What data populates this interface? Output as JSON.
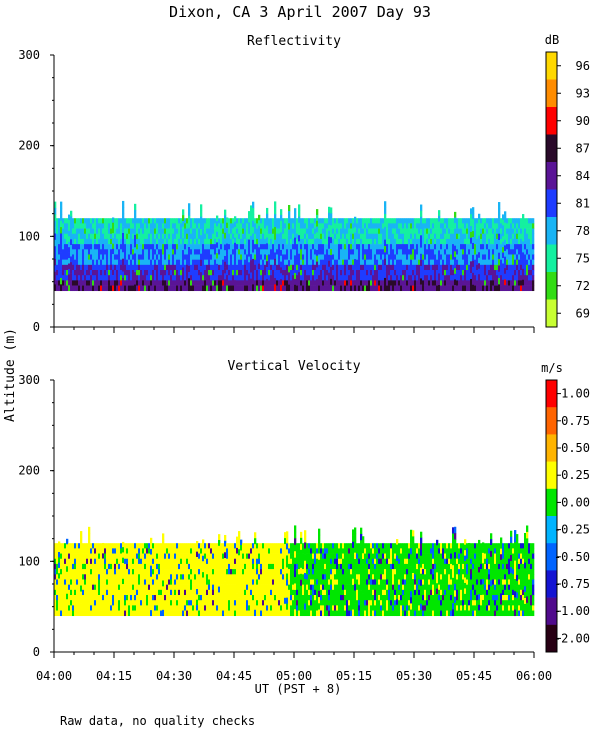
{
  "title": "Dixon, CA   3 April 2007   Day   93",
  "footnote": "Raw data, no quality checks",
  "y_axis_label": "Altitude (m)",
  "x_axis_label": "UT  (PST + 8)",
  "chart_data": [
    {
      "type": "heatmap",
      "title": "Reflectivity",
      "ylim": [
        0,
        300
      ],
      "yticks": [
        0,
        100,
        200,
        300
      ],
      "xlim": [
        "04:00",
        "06:00"
      ],
      "xticks": [
        "04:00",
        "04:15",
        "04:30",
        "04:45",
        "05:00",
        "05:15",
        "05:30",
        "05:45",
        "06:00"
      ],
      "xlabel": "UT  (PST + 8)",
      "ylabel": "Altitude (m)",
      "data_altitude_range": [
        40,
        120
      ],
      "colorbar": {
        "unit": "dB",
        "labels": [
          "96",
          "93",
          "90",
          "87",
          "84",
          "81",
          "78",
          "75",
          "72",
          "69"
        ],
        "colors": [
          "#ffd800",
          "#ff8c00",
          "#ff0000",
          "#2a0a2a",
          "#5a1496",
          "#1e3cff",
          "#19b4f5",
          "#14f0a0",
          "#32dc14",
          "#c8ff32"
        ]
      }
    },
    {
      "type": "heatmap",
      "title": "Vertical Velocity",
      "ylim": [
        0,
        300
      ],
      "yticks": [
        0,
        100,
        200,
        300
      ],
      "xlim": [
        "04:00",
        "06:00"
      ],
      "xticks": [
        "04:00",
        "04:15",
        "04:30",
        "04:45",
        "05:00",
        "05:15",
        "05:30",
        "05:45",
        "06:00"
      ],
      "xlabel": "UT  (PST + 8)",
      "ylabel": "Altitude (m)",
      "data_altitude_range": [
        40,
        120
      ],
      "colorbar": {
        "unit": "m/s",
        "labels": [
          "1.00",
          "0.75",
          "0.50",
          "0.25",
          "0.00",
          "-0.25",
          "-0.50",
          "-0.75",
          "-1.00",
          "-2.00"
        ],
        "colors": [
          "#ff0000",
          "#ff6400",
          "#ffb400",
          "#ffff00",
          "#00e600",
          "#00b4ff",
          "#0064ff",
          "#1414d2",
          "#500a8c",
          "#280014"
        ]
      }
    }
  ]
}
